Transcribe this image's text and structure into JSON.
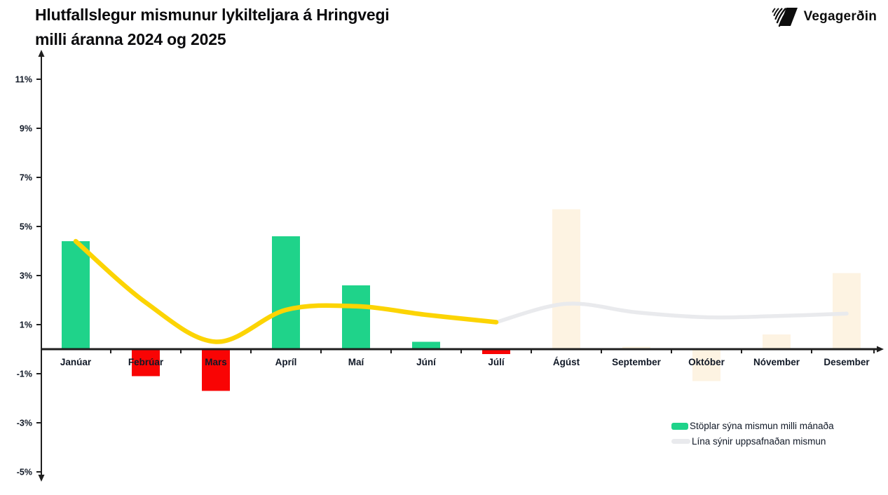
{
  "header": {
    "title_line1": "Hlutfallslegur mismunur lykilteljara á Hringvegi",
    "title_line2": "milli áranna 2024 og 2025",
    "logo_text": "Vegagerðin"
  },
  "legend": {
    "bar_label": "Stöplar sýna mismun milli mánaða",
    "line_label": "Lína sýnir uppsafnaðan mismun"
  },
  "chart_data": {
    "type": "bar",
    "title": "Hlutfallslegur mismunur lykilteljara á Hringvegi milli áranna 2024 og 2025",
    "categories": [
      "Janúar",
      "Febrúar",
      "Mars",
      "Apríl",
      "Maí",
      "Júní",
      "Júlí",
      "Ágúst",
      "September",
      "Október",
      "Nóvember",
      "Desember"
    ],
    "series": [
      {
        "name": "Mismunur milli mánaða",
        "type": "bar",
        "values": [
          4.4,
          -1.1,
          -1.7,
          4.6,
          2.6,
          0.3,
          -0.2,
          5.7,
          0.1,
          -1.3,
          0.6,
          3.1
        ],
        "projected_from_index": 7
      },
      {
        "name": "Uppsafnaður mismunur",
        "type": "line",
        "values": [
          4.4,
          1.9,
          0.3,
          1.6,
          1.75,
          1.4,
          1.1,
          1.85,
          1.5,
          1.3,
          1.35,
          1.45
        ],
        "solid_until_index": 6
      }
    ],
    "xlabel": "",
    "ylabel": "",
    "y_ticks": [
      11,
      9,
      7,
      5,
      3,
      1,
      -1,
      -3,
      -5
    ],
    "y_tick_suffix": "%",
    "ylim": [
      -5,
      12
    ],
    "grid": false,
    "legend_position": "bottom-right",
    "colors": {
      "bar_positive": "#1fd38a",
      "bar_negative": "#f90404",
      "bar_projected": "#fdf3e2",
      "line_actual": "#fcd403",
      "line_projected": "#e9eaed",
      "axis": "#1f1f1f",
      "label_text": "#101826"
    }
  }
}
